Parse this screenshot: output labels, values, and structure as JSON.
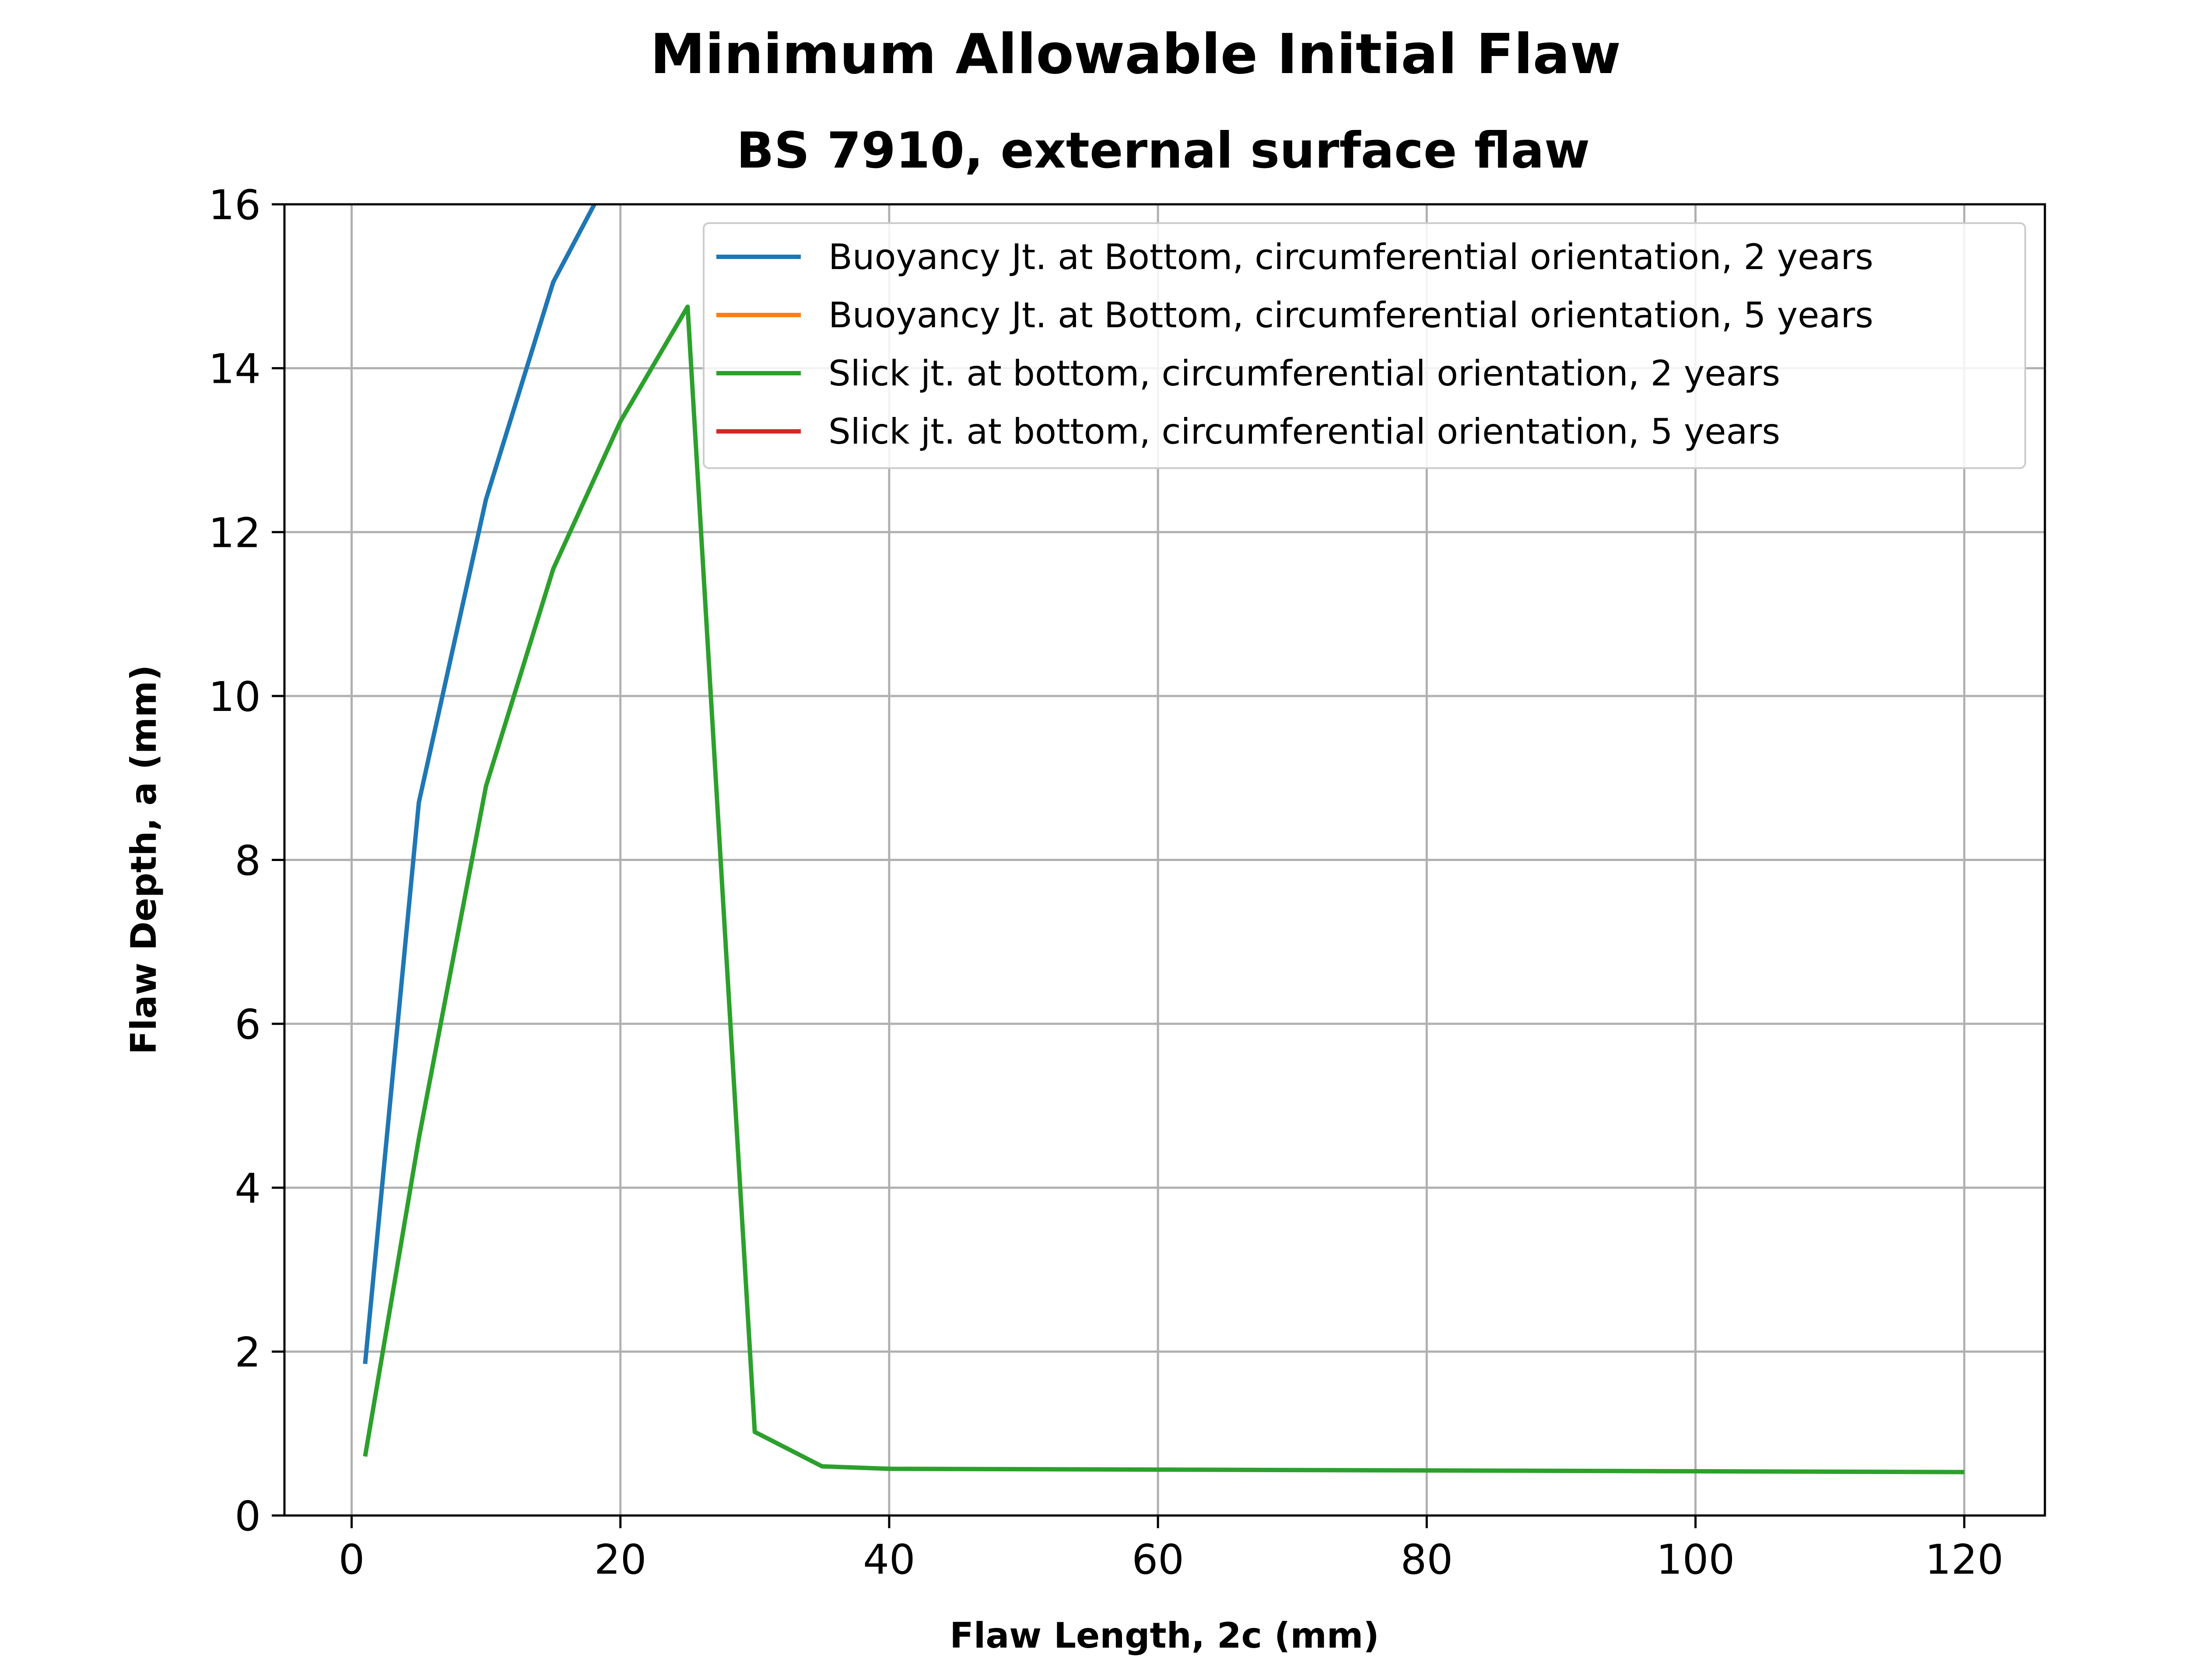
{
  "chart_data": {
    "type": "line",
    "title": "Minimum Allowable Initial Flaw",
    "subtitle": "BS 7910, external surface flaw",
    "xlabel": "Flaw Length, 2c (mm)",
    "ylabel": "Flaw Depth, a (mm)",
    "xlim": [
      -5,
      126
    ],
    "ylim": [
      0,
      16
    ],
    "xticks": [
      0,
      20,
      40,
      60,
      80,
      100,
      120
    ],
    "yticks": [
      0,
      2,
      4,
      6,
      8,
      10,
      12,
      14,
      16
    ],
    "grid": true,
    "legend_position": "top-right",
    "series": [
      {
        "name": "Buoyancy Jt. at Bottom, circumferential orientation, 2 years",
        "color": "#1f77b4",
        "x": [
          1,
          5,
          10,
          15,
          20
        ],
        "y": [
          1.85,
          8.7,
          12.4,
          15.05,
          16.6
        ]
      },
      {
        "name": "Buoyancy Jt. at Bottom, circumferential orientation, 5 years",
        "color": "#ff7f0e",
        "x": [],
        "y": []
      },
      {
        "name": "Slick jt. at bottom, circumferential orientation, 2 years",
        "color": "#2ca02c",
        "x": [
          1,
          5,
          10,
          15,
          20,
          25,
          30,
          35,
          40,
          60,
          80,
          100,
          120
        ],
        "y": [
          0.72,
          4.6,
          8.9,
          11.55,
          13.35,
          14.75,
          1.02,
          0.6,
          0.57,
          0.56,
          0.55,
          0.54,
          0.53
        ]
      },
      {
        "name": "Slick jt. at bottom, circumferential orientation, 5 years",
        "color": "#d62728",
        "x": [],
        "y": []
      }
    ]
  }
}
